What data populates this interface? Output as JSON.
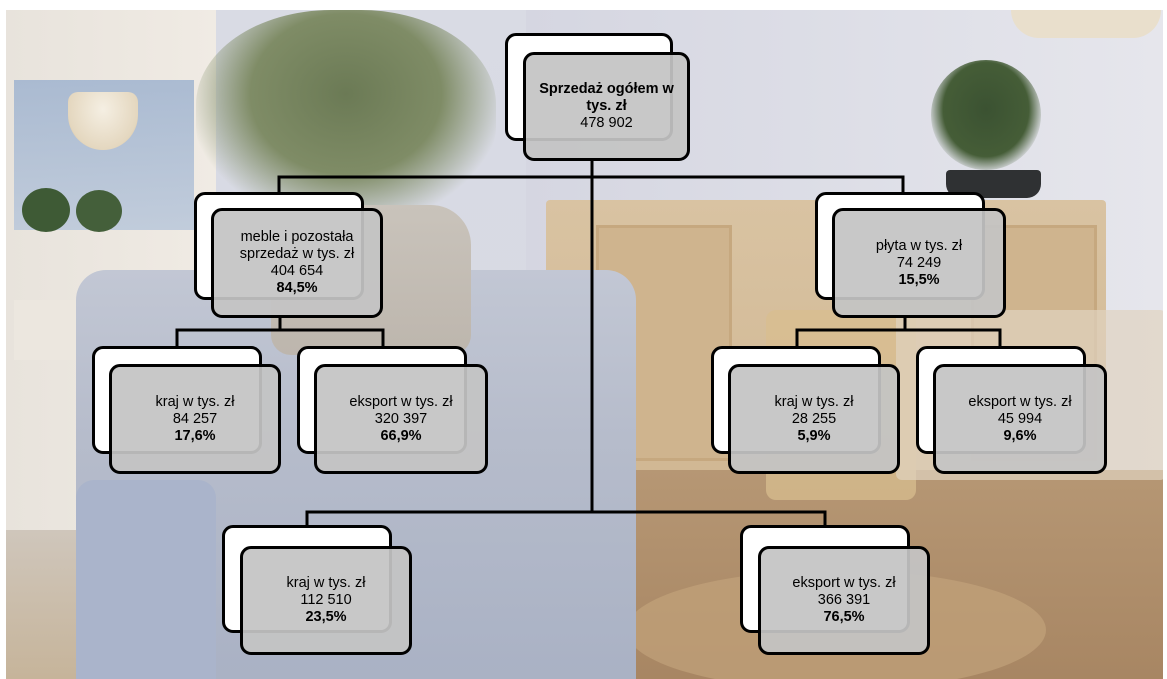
{
  "root": {
    "title": "Sprzedaż ogółem w tys. zł",
    "value": "478 902"
  },
  "meble": {
    "title": "meble i pozostała sprzedaż w tys. zł",
    "value": "404 654",
    "share": "84,5%"
  },
  "plyta": {
    "title": "płyta w tys. zł",
    "value": "74 249",
    "share": "15,5%"
  },
  "meble_kraj": {
    "title": "kraj w tys. zł",
    "value": "84 257",
    "share": "17,6%"
  },
  "meble_eksport": {
    "title": "eksport w tys. zł",
    "value": "320 397",
    "share": "66,9%"
  },
  "plyta_kraj": {
    "title": "kraj w tys. zł",
    "value": "28 255",
    "share": "5,9%"
  },
  "plyta_eksport": {
    "title": "eksport w tys. zł",
    "value": "45 994",
    "share": "9,6%"
  },
  "total_kraj": {
    "title": "kraj w tys. zł",
    "value": "112 510",
    "share": "23,5%"
  },
  "total_eksport": {
    "title": "eksport w tys. zł",
    "value": "366 391",
    "share": "76,5%"
  }
}
